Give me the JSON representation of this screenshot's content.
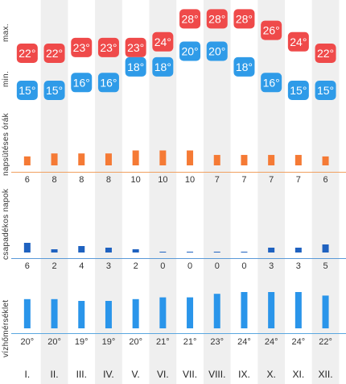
{
  "labels": {
    "max": "max.",
    "min": "min.",
    "sunshine": "napsütéses órák",
    "rain_days": "csapadékos napok",
    "water_temp": "vízhőmérséklet"
  },
  "colors": {
    "max_badge": "#ef4a4a",
    "min_badge": "#2f9be8",
    "sunshine_bar": "#f57a35",
    "sunshine_line": "#f0a060",
    "rain_bar": "#1f62c0",
    "rain_line": "#5a9ad8",
    "water_bar": "#2a95ea",
    "water_line": "#5aa7e0",
    "stripe": "#efefef"
  },
  "chart_data": {
    "type": "table",
    "categories": [
      "I.",
      "II.",
      "III.",
      "IV.",
      "V.",
      "VI.",
      "VII.",
      "VIII.",
      "IX.",
      "X.",
      "XI.",
      "XII."
    ],
    "max_temp_labels": [
      "22°",
      "22°",
      "23°",
      "23°",
      "23°",
      "24°",
      "28°",
      "28°",
      "28°",
      "26°",
      "24°",
      "22°"
    ],
    "min_temp_labels": [
      "15°",
      "15°",
      "16°",
      "16°",
      "18°",
      "18°",
      "20°",
      "20°",
      "18°",
      "16°",
      "15°",
      "15°"
    ],
    "max_temp": [
      22,
      22,
      23,
      23,
      23,
      24,
      28,
      28,
      28,
      26,
      24,
      22
    ],
    "min_temp": [
      15,
      15,
      16,
      16,
      18,
      18,
      20,
      20,
      18,
      16,
      15,
      15
    ],
    "sunshine_hours": [
      6,
      8,
      8,
      8,
      10,
      10,
      10,
      7,
      7,
      7,
      7,
      6
    ],
    "rainy_days": [
      6,
      2,
      4,
      3,
      2,
      0,
      0,
      0,
      0,
      3,
      3,
      5
    ],
    "water_temp_labels": [
      "20°",
      "20°",
      "19°",
      "19°",
      "20°",
      "21°",
      "21°",
      "23°",
      "24°",
      "24°",
      "24°",
      "22°"
    ],
    "water_temp": [
      20,
      20,
      19,
      19,
      20,
      21,
      21,
      23,
      24,
      24,
      24,
      22
    ]
  }
}
